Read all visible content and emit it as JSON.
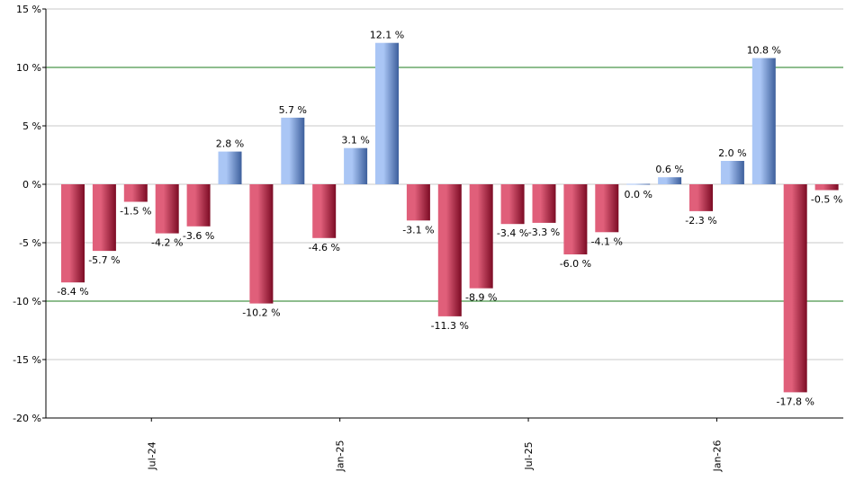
{
  "chart_data": {
    "type": "bar",
    "title": "",
    "xlabel": "",
    "ylabel": "",
    "ylim": [
      -20,
      15
    ],
    "y_ticks": [
      15,
      10,
      5,
      0,
      -5,
      -10,
      -15,
      -20
    ],
    "y_tick_suffix": " %",
    "grid": true,
    "highlight_lines": [
      10,
      -10
    ],
    "colors": {
      "positive_top": "#aac6f5",
      "positive_bottom": "#3d5f9c",
      "negative_top": "#e05f7a",
      "negative_bottom": "#7c0b24",
      "gridline": "#c8c8c8",
      "highlight_line": "#1e7b1e",
      "axis": "#000000"
    },
    "x_tick_labels": [
      {
        "label": "Jul-24",
        "after_bar": 2
      },
      {
        "label": "Jan-25",
        "after_bar": 8
      },
      {
        "label": "Jul-25",
        "after_bar": 14
      },
      {
        "label": "Jan-26",
        "after_bar": 20
      }
    ],
    "values": [
      -8.4,
      -5.7,
      -1.5,
      -4.2,
      -3.6,
      2.8,
      -10.2,
      5.7,
      -4.6,
      3.1,
      12.1,
      -3.1,
      -11.3,
      -8.9,
      -3.4,
      -3.3,
      -6.0,
      -4.1,
      0.0,
      0.6,
      -2.3,
      2.0,
      10.8,
      -17.8,
      -0.5
    ],
    "data_labels": [
      "-8.4 %",
      "-5.7 %",
      "-1.5 %",
      "-4.2 %",
      "-3.6 %",
      "2.8 %",
      "-10.2 %",
      "5.7 %",
      "-4.6 %",
      "3.1 %",
      "12.1 %",
      "-3.1 %",
      "-11.3 %",
      "-8.9 %",
      "-3.4 %",
      "-3.3 %",
      "-6.0 %",
      "-4.1 %",
      "0.0 %",
      "0.6 %",
      "-2.3 %",
      "2.0 %",
      "10.8 %",
      "-17.8 %",
      "-0.5 %"
    ]
  }
}
